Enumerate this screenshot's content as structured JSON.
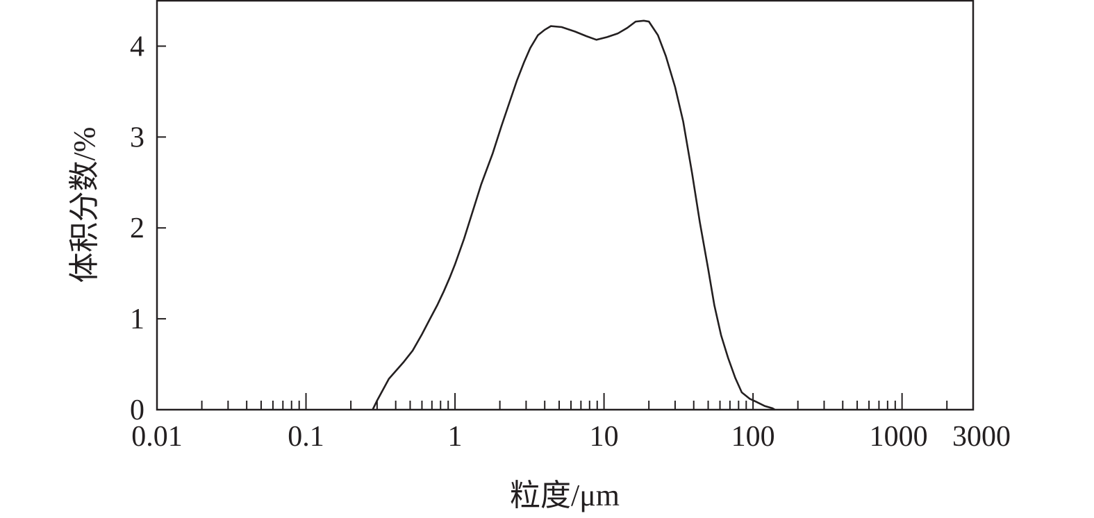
{
  "chart_data": {
    "type": "line",
    "title": "",
    "xlabel": "粒度/μm",
    "ylabel": "体积分数/%",
    "xscale": "log",
    "xlim": [
      0.01,
      3000
    ],
    "ylim": [
      0,
      4.5
    ],
    "xticks": [
      0.01,
      0.1,
      1,
      10,
      100,
      1000,
      3000
    ],
    "xtick_labels": [
      "0.01",
      "0.1",
      "1",
      "10",
      "100",
      "1000",
      "3000"
    ],
    "yticks": [
      0,
      1,
      2,
      3,
      4
    ],
    "ytick_labels": [
      "0",
      "1",
      "2",
      "3",
      "4"
    ],
    "grid": false,
    "line_color": "#231f20",
    "series": [
      {
        "x": [
          0.28,
          0.3,
          0.36,
          0.45,
          0.52,
          0.6,
          0.68,
          0.76,
          0.84,
          0.92,
          1.0,
          1.15,
          1.29,
          1.5,
          1.79,
          2.05,
          2.34,
          2.6,
          2.9,
          3.2,
          3.6,
          4.0,
          4.4,
          5.2,
          6.4,
          7.6,
          8.9,
          10.5,
          12.4,
          14.3,
          16.3,
          18.5,
          20,
          23,
          26,
          30,
          34,
          39,
          44,
          50,
          55,
          61,
          68,
          76,
          84,
          95,
          104,
          120,
          135,
          140
        ],
        "y": [
          0,
          0.1,
          0.34,
          0.52,
          0.65,
          0.83,
          1.0,
          1.15,
          1.3,
          1.45,
          1.6,
          1.88,
          2.14,
          2.48,
          2.82,
          3.12,
          3.4,
          3.62,
          3.82,
          3.98,
          4.12,
          4.18,
          4.22,
          4.21,
          4.16,
          4.11,
          4.07,
          4.1,
          4.14,
          4.2,
          4.27,
          4.28,
          4.27,
          4.12,
          3.89,
          3.55,
          3.17,
          2.6,
          2.06,
          1.55,
          1.15,
          0.82,
          0.57,
          0.35,
          0.19,
          0.12,
          0.09,
          0.04,
          0.015,
          0
        ]
      }
    ]
  }
}
